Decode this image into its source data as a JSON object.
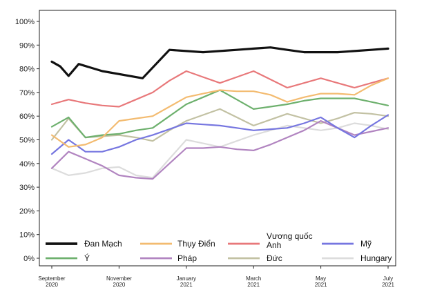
{
  "chart_data": {
    "type": "line",
    "title": "",
    "xlabel": "",
    "ylabel": "",
    "ylim": [
      0,
      100
    ],
    "y_ticks": [
      "0%",
      "10%",
      "20%",
      "30%",
      "40%",
      "50%",
      "60%",
      "70%",
      "80%",
      "90%",
      "100%"
    ],
    "x_ticks": [
      {
        "line1": "September",
        "line2": "2020",
        "x": 0
      },
      {
        "line1": "November",
        "line2": "2020",
        "x": 2
      },
      {
        "line1": "January",
        "line2": "2021",
        "x": 4
      },
      {
        "line1": "March",
        "line2": "2021",
        "x": 6
      },
      {
        "line1": "May",
        "line2": "2021",
        "x": 8
      },
      {
        "line1": "July",
        "line2": "2021",
        "x": 10
      }
    ],
    "x_range": [
      -0.2,
      10.2
    ],
    "grid": false,
    "legend_position": "bottom",
    "series": [
      {
        "name": "Đan Mạch",
        "color": "#111111",
        "width": 3.2,
        "x": [
          0,
          0.25,
          0.5,
          0.8,
          1.5,
          2.7,
          3.5,
          4,
          4.5,
          5,
          5.5,
          6,
          6.5,
          7,
          7.5,
          8,
          8.5,
          9,
          9.5,
          10
        ],
        "values": [
          83,
          81,
          77,
          82,
          79,
          76,
          88,
          87.5,
          87,
          87.5,
          88,
          88.5,
          89,
          88,
          87,
          87,
          87,
          87.5,
          88,
          88.5
        ]
      },
      {
        "name": "Thụy Điển",
        "color": "#f3bb70",
        "width": 2.2,
        "x": [
          0,
          0.5,
          1,
          1.5,
          2,
          2.5,
          3,
          3.5,
          4,
          4.5,
          5,
          5.5,
          6,
          6.5,
          7,
          7.5,
          8,
          8.5,
          9,
          9.5,
          10
        ],
        "values": [
          52,
          47,
          48,
          51,
          58,
          59,
          60,
          64,
          68,
          69.5,
          71,
          70.5,
          70.5,
          69,
          66,
          68,
          69.5,
          69.5,
          69,
          73,
          76
        ]
      },
      {
        "name": "Vương quốc Anh",
        "color": "#e8787a",
        "width": 2.2,
        "x": [
          0,
          0.5,
          1,
          1.5,
          2,
          2.5,
          3,
          3.5,
          4,
          4.5,
          5,
          5.5,
          6,
          6.5,
          7,
          7.5,
          8,
          8.5,
          9,
          9.5,
          10
        ],
        "values": [
          65,
          67,
          65.5,
          64.5,
          64,
          67,
          70,
          75,
          79,
          76.5,
          74,
          76.5,
          79,
          75.5,
          72,
          74,
          76,
          74,
          72,
          74,
          76
        ]
      },
      {
        "name": "Mỹ",
        "color": "#7676e0",
        "width": 2.2,
        "x": [
          0,
          0.5,
          1,
          1.5,
          2,
          2.5,
          3,
          3.5,
          4,
          4.5,
          5,
          5.5,
          6,
          6.5,
          7,
          7.5,
          8,
          8.5,
          9,
          9.5,
          10
        ],
        "values": [
          44,
          50,
          45,
          45,
          47,
          50,
          52,
          54.5,
          57,
          56.5,
          56,
          55,
          54,
          54.5,
          55,
          57,
          59.5,
          55,
          51,
          56,
          60.5
        ]
      },
      {
        "name": "Ý",
        "color": "#6db06d",
        "width": 2.2,
        "x": [
          0,
          0.5,
          1,
          1.5,
          2,
          2.5,
          3,
          3.5,
          4,
          4.5,
          5,
          5.5,
          6,
          6.5,
          7,
          7.5,
          8,
          8.5,
          9,
          9.5,
          10
        ],
        "values": [
          55.5,
          59.5,
          51,
          52,
          52.5,
          54,
          55,
          60,
          65,
          68,
          71,
          67,
          63,
          64,
          65,
          66.5,
          67.5,
          67.5,
          67.5,
          66,
          64.5
        ]
      },
      {
        "name": "Pháp",
        "color": "#b184c0",
        "width": 2.2,
        "x": [
          0,
          0.5,
          1,
          1.5,
          2,
          2.5,
          3,
          3.5,
          4,
          4.5,
          5,
          5.5,
          6,
          6.5,
          7,
          7.5,
          8,
          8.5,
          9,
          9.5,
          10
        ],
        "values": [
          38,
          45,
          42,
          39,
          35,
          34,
          33.5,
          40,
          46.5,
          46.5,
          47,
          46,
          45.5,
          48,
          51,
          54,
          58,
          55,
          52,
          53.5,
          55
        ]
      },
      {
        "name": "Đức",
        "color": "#c2c1a3",
        "width": 2.2,
        "x": [
          0,
          0.5,
          1,
          1.5,
          2,
          2.5,
          3,
          3.5,
          4,
          4.5,
          5,
          5.5,
          6,
          6.5,
          7,
          7.5,
          8,
          8.5,
          9,
          9.5,
          10
        ],
        "values": [
          50,
          59,
          51,
          51.5,
          52,
          51,
          49.5,
          54,
          58,
          60.5,
          63,
          59.5,
          56,
          58.5,
          61,
          59,
          57,
          59,
          61.5,
          61,
          60
        ]
      },
      {
        "name": "Hungary",
        "color": "#dcdcdc",
        "width": 2.2,
        "x": [
          0,
          0.5,
          1,
          1.5,
          2,
          2.5,
          3,
          3.5,
          4,
          4.5,
          5,
          5.5,
          6,
          6.5,
          7,
          7.5,
          8,
          8.5,
          9,
          9.5,
          10
        ],
        "values": [
          38,
          35,
          36,
          38,
          38.5,
          35,
          34,
          42,
          50,
          48.5,
          47,
          49.5,
          52,
          54,
          56,
          55,
          54,
          55,
          57,
          56,
          54.5
        ]
      }
    ]
  }
}
